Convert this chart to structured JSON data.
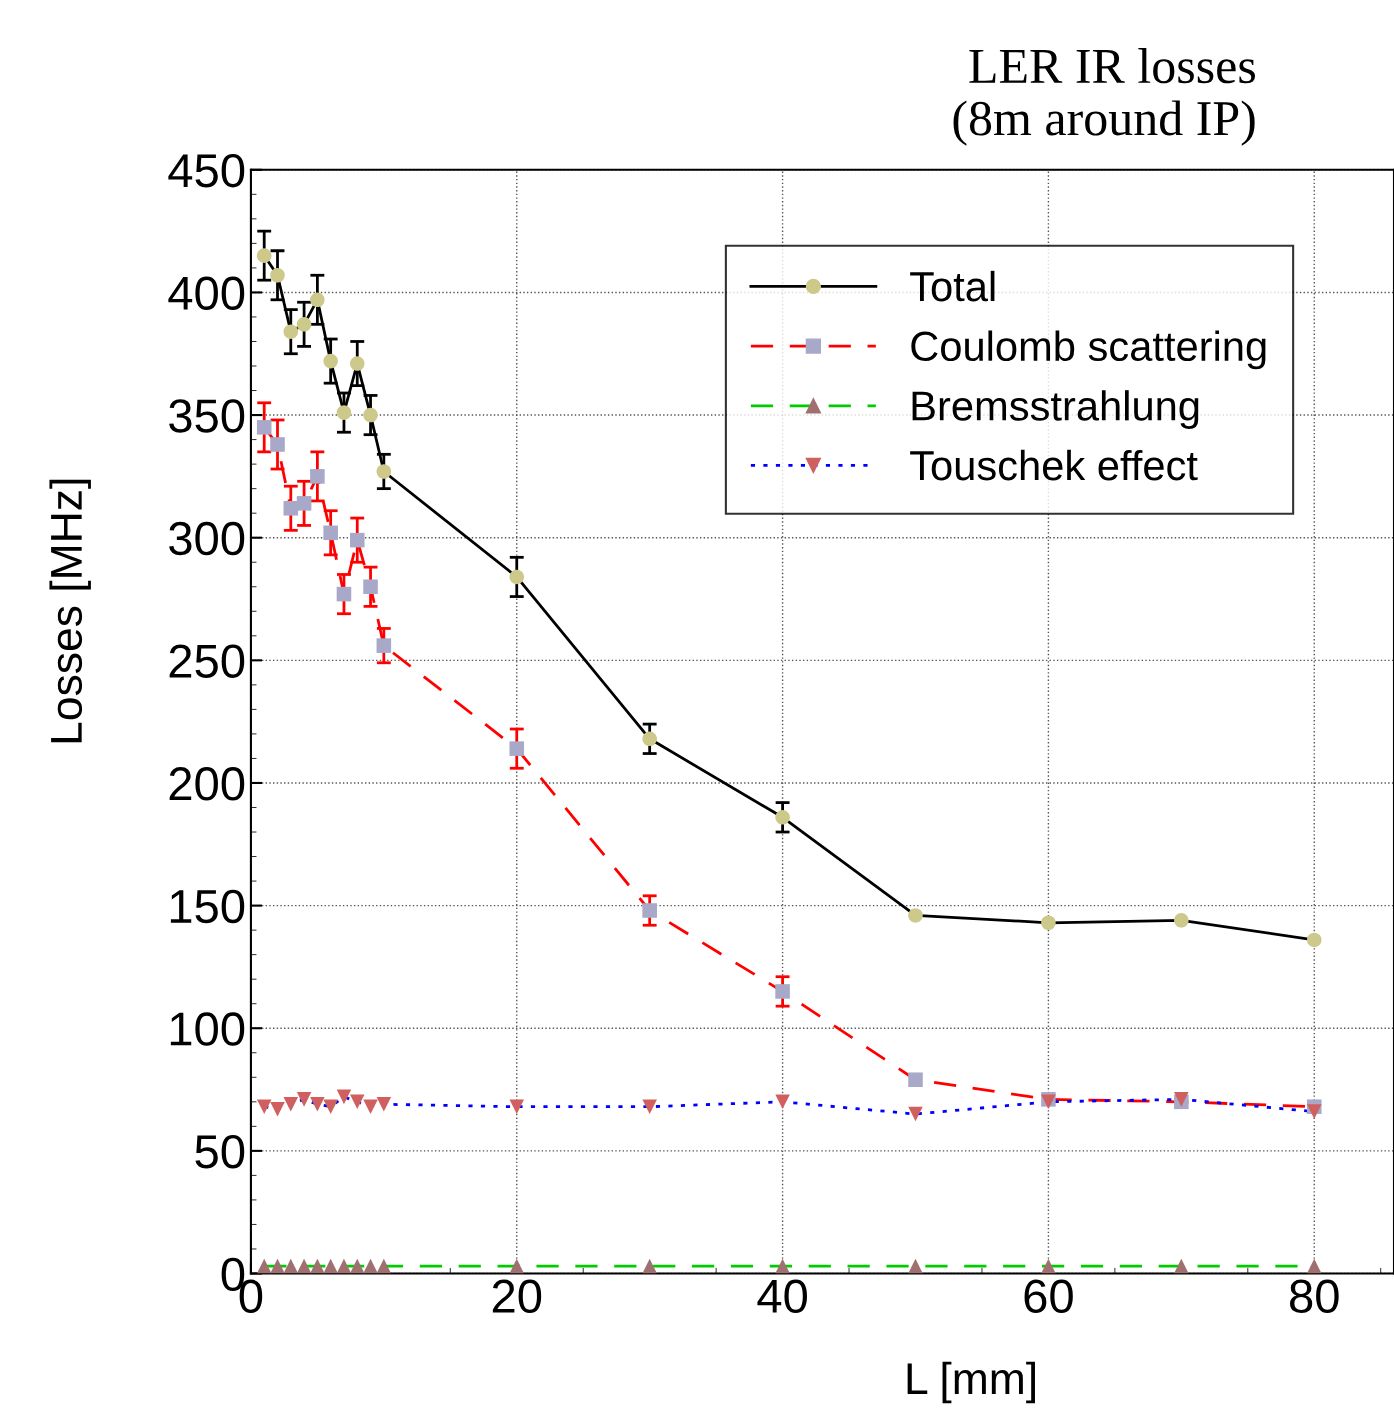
{
  "chart_data": {
    "type": "line",
    "title": "LER IR losses\n(8m around IP)",
    "xlabel": "L [mm]",
    "ylabel": "Losses [MHz]",
    "x": [
      1,
      2,
      3,
      4,
      5,
      6,
      7,
      8,
      9,
      10,
      20,
      30,
      40,
      50,
      60,
      70,
      80
    ],
    "series": [
      {
        "name": "Total",
        "color": "#000000",
        "colors": [
          "#cdc98a",
          "#cdc98a",
          "#cdc98a",
          "#cdc98a",
          "#cdc98a",
          "#cdc98a",
          "#cdc98a",
          "#cdc98a",
          "#cdc98a",
          "#cdc98a",
          "#cdc98a",
          "#cdc98a",
          "#cdc98a",
          "#cdc98a",
          "#cdc98a",
          "#cdc98a",
          "#cdc98a"
        ],
        "marker": "circle",
        "line_style": "solid",
        "values": [
          415,
          407,
          384,
          387,
          397,
          372,
          351,
          371,
          350,
          327,
          284,
          218,
          186,
          146,
          143,
          144,
          136
        ],
        "errors": [
          10,
          10,
          9,
          9,
          10,
          9,
          8,
          9,
          8,
          7,
          8,
          6,
          6,
          null,
          null,
          null,
          null
        ]
      },
      {
        "name": "Coulomb scattering",
        "color": "#ff0000",
        "colors": [
          "#a8a8c8",
          "#a8a8c8",
          "#a8a8c8",
          "#a8a8c8",
          "#a8a8c8",
          "#a8a8c8",
          "#a8a8c8",
          "#a8a8c8",
          "#a8a8c8",
          "#a8a8c8",
          "#a8a8c8",
          "#a8a8c8",
          "#a8a8c8",
          "#a8a8c8",
          "#a8a8c8",
          "#a8a8c8",
          "#a8a8c8"
        ],
        "marker": "square",
        "line_style": "dashed",
        "values": [
          345,
          338,
          312,
          314,
          325,
          302,
          277,
          299,
          280,
          256,
          214,
          148,
          115,
          79,
          71,
          70,
          68
        ],
        "errors": [
          10,
          10,
          9,
          9,
          10,
          9,
          8,
          9,
          8,
          7,
          8,
          6,
          6,
          null,
          null,
          null,
          null
        ]
      },
      {
        "name": "Bremsstrahlung",
        "color": "#00cc00",
        "colors": [
          "#a07070",
          "#a07070",
          "#a07070",
          "#a07070",
          "#a07070",
          "#a07070",
          "#a07070",
          "#a07070",
          "#a07070",
          "#a07070",
          "#a07070",
          "#a07070",
          "#a07070",
          "#a07070",
          "#a07070",
          "#a07070",
          "#a07070"
        ],
        "marker": "triangle",
        "line_style": "dashed",
        "values": [
          3,
          3,
          3,
          3,
          3,
          3,
          3,
          3,
          3,
          3,
          3,
          3,
          3,
          3,
          3,
          3,
          3
        ]
      },
      {
        "name": "Touschek effect",
        "color": "#0000ff",
        "colors": [
          "#d06060",
          "#d06060",
          "#d06060",
          "#d06060",
          "#d06060",
          "#d06060",
          "#d06060",
          "#d06060",
          "#d06060",
          "#d06060",
          "#d06060",
          "#d06060",
          "#d06060",
          "#d06060",
          "#d06060",
          "#d06060",
          "#d06060"
        ],
        "marker": "triangle_down",
        "line_style": "dotted",
        "values": [
          68,
          67,
          69,
          71,
          69,
          68,
          72,
          70,
          68,
          69,
          68,
          68,
          70,
          65,
          70,
          71,
          66
        ]
      }
    ],
    "xlim": [
      0,
      86
    ],
    "xticks": [
      0,
      20,
      40,
      60,
      80
    ],
    "ylim": [
      0,
      450
    ],
    "yticks": [
      0,
      50,
      100,
      150,
      200,
      250,
      300,
      350,
      400,
      450
    ],
    "grid": true,
    "legend": "top right"
  }
}
